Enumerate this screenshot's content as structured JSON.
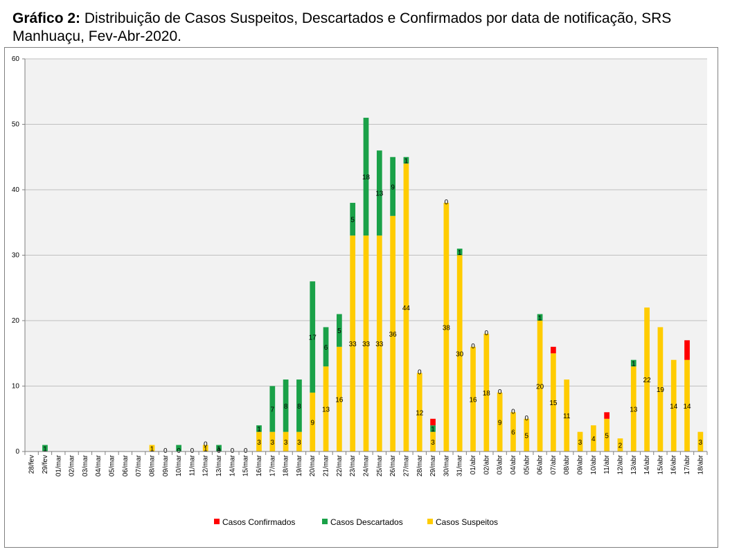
{
  "title_prefix": "Gráfico 2:",
  "title_text": "Distribuição de Casos Suspeitos, Descartados e Confirmados por data de notificação, SRS Manhuaçu, Fev-Abr-2020.",
  "chart_data": {
    "type": "bar",
    "stacked": true,
    "ylim": [
      0,
      60
    ],
    "yticks": [
      0,
      10,
      20,
      30,
      40,
      50,
      60
    ],
    "grid": true,
    "legend_position": "bottom",
    "categories": [
      "28/fev",
      "29/fev",
      "01/mar",
      "02/mar",
      "03/mar",
      "04/mar",
      "05/mar",
      "06/mar",
      "07/mar",
      "08/mar",
      "09/mar",
      "10/mar",
      "11/mar",
      "12/mar",
      "13/mar",
      "14/mar",
      "15/mar",
      "16/mar",
      "17/mar",
      "18/mar",
      "19/mar",
      "20/mar",
      "21/mar",
      "22/mar",
      "23/mar",
      "24/mar",
      "25/mar",
      "26/mar",
      "27/mar",
      "28/mar",
      "29/mar",
      "30/mar",
      "31/mar",
      "01/abr",
      "02/abr",
      "03/abr",
      "04/abr",
      "05/abr",
      "06/abr",
      "07/abr",
      "08/abr",
      "09/abr",
      "10/abr",
      "11/abr",
      "12/abr",
      "13/abr",
      "14/abr",
      "15/abr",
      "16/abr",
      "17/abr",
      "18/abr"
    ],
    "series": [
      {
        "name": "Casos Suspeitos",
        "color": "#FFCC00",
        "values": [
          0,
          0,
          0,
          0,
          0,
          0,
          0,
          0,
          0,
          1,
          0,
          0,
          0,
          1,
          0,
          0,
          0,
          3,
          3,
          3,
          3,
          9,
          13,
          16,
          33,
          33,
          33,
          36,
          44,
          12,
          3,
          38,
          30,
          16,
          18,
          9,
          6,
          5,
          20,
          15,
          11,
          3,
          4,
          5,
          2,
          13,
          22,
          19,
          14,
          14,
          3
        ],
        "labels": [
          null,
          null,
          null,
          null,
          null,
          null,
          null,
          null,
          null,
          "1",
          "0",
          "0",
          "0",
          "1",
          "0",
          "0",
          "0",
          "3",
          "3",
          "3",
          "3",
          "9",
          "13",
          "16",
          "33",
          "33",
          "33",
          "36",
          "44",
          "12",
          "3",
          "38",
          "30",
          "16",
          "18",
          "9",
          "6",
          "5",
          "20",
          "15",
          "11",
          "3",
          "4",
          "5",
          "2",
          "13",
          "22",
          "19",
          "14",
          "14",
          "3"
        ]
      },
      {
        "name": "Casos Descartados",
        "color": "#1AA148",
        "values": [
          0,
          1,
          0,
          0,
          0,
          0,
          0,
          0,
          0,
          0,
          0,
          1,
          0,
          0,
          1,
          0,
          0,
          1,
          7,
          8,
          8,
          17,
          6,
          5,
          5,
          18,
          13,
          9,
          1,
          0,
          1,
          0,
          1,
          0,
          0,
          0,
          0,
          0,
          1,
          0,
          0,
          0,
          0,
          0,
          0,
          1,
          0,
          0,
          0,
          0,
          0
        ],
        "labels": [
          null,
          "1",
          null,
          null,
          null,
          null,
          null,
          null,
          null,
          null,
          null,
          null,
          null,
          "0",
          "1",
          null,
          null,
          "1",
          "7",
          "8",
          "8",
          "17",
          "6",
          "5",
          "5",
          "18",
          "13",
          "9",
          "1",
          "0",
          "1",
          "0",
          "1",
          "0",
          "0",
          "0",
          "0",
          "0",
          "1",
          null,
          null,
          null,
          null,
          null,
          null,
          "1",
          null,
          null,
          null,
          null,
          null
        ]
      },
      {
        "name": "Casos Confirmados",
        "color": "#FF0000",
        "values": [
          0,
          0,
          0,
          0,
          0,
          0,
          0,
          0,
          0,
          0,
          0,
          0,
          0,
          0,
          0,
          0,
          0,
          0,
          0,
          0,
          0,
          0,
          0,
          0,
          0,
          0,
          0,
          0,
          0,
          0,
          1,
          0,
          0,
          0,
          0,
          0,
          0,
          0,
          0,
          1,
          0,
          0,
          0,
          1,
          0,
          0,
          0,
          0,
          0,
          3,
          0
        ],
        "labels": [
          null,
          null,
          null,
          null,
          null,
          null,
          null,
          null,
          null,
          null,
          null,
          null,
          null,
          null,
          null,
          null,
          null,
          null,
          null,
          null,
          null,
          null,
          null,
          null,
          null,
          null,
          null,
          null,
          null,
          null,
          null,
          null,
          null,
          null,
          null,
          null,
          null,
          null,
          null,
          null,
          null,
          null,
          null,
          null,
          null,
          null,
          null,
          null,
          null,
          null,
          null
        ]
      }
    ],
    "legend_order": [
      "Casos Confirmados",
      "Casos Descartados",
      "Casos Suspeitos"
    ]
  }
}
